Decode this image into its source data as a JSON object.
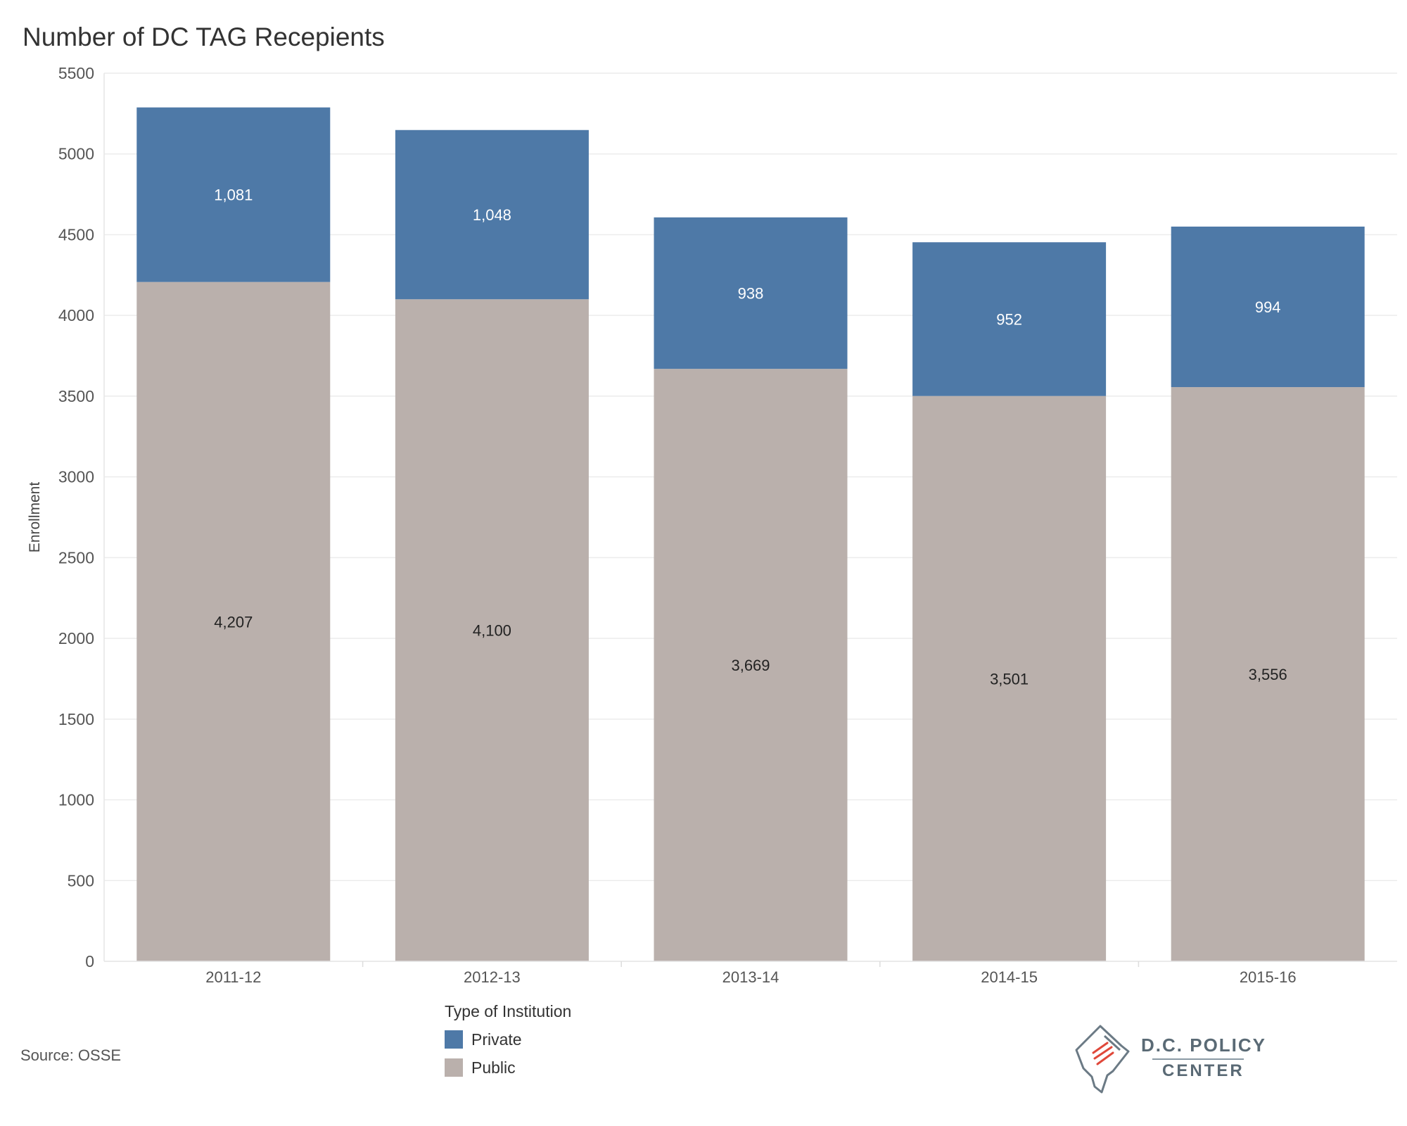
{
  "title": "Number of DC TAG Recepients",
  "source": "Source: OSSE",
  "legend": {
    "title": "Type of Institution",
    "items": [
      {
        "label": "Private",
        "color": "#4e79a7"
      },
      {
        "label": "Public",
        "color": "#bab0ac"
      }
    ]
  },
  "logo": {
    "name": "D.C. POLICY",
    "sub": "CENTER",
    "icon": "dc-map-document-icon"
  },
  "chart_data": {
    "type": "bar",
    "stacked": true,
    "categories": [
      "2011-12",
      "2012-13",
      "2013-14",
      "2014-15",
      "2015-16"
    ],
    "series": [
      {
        "name": "Public",
        "color": "#bab0ac",
        "values": [
          4207,
          4100,
          3669,
          3501,
          3556
        ],
        "labels": [
          "4,207",
          "4,100",
          "3,669",
          "3,501",
          "3,556"
        ]
      },
      {
        "name": "Private",
        "color": "#4e79a7",
        "values": [
          1081,
          1048,
          938,
          952,
          994
        ],
        "labels": [
          "1,081",
          "1,048",
          "938",
          "952",
          "994"
        ]
      }
    ],
    "xlabel": "",
    "ylabel": "Enrollment",
    "ylim": [
      0,
      5500
    ],
    "yticks": [
      "0",
      "500",
      "1000",
      "1500",
      "2000",
      "2500",
      "3000",
      "3500",
      "4000",
      "4500",
      "5000",
      "5500"
    ],
    "grid": true
  }
}
